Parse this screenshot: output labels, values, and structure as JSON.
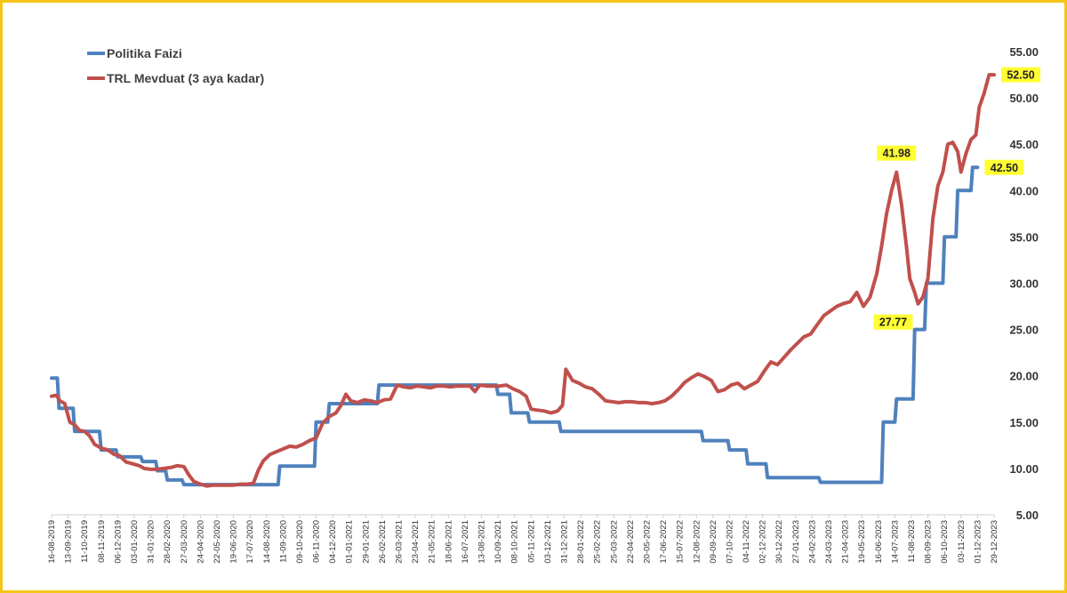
{
  "chart_data": {
    "type": "line",
    "title": "",
    "xlabel": "",
    "ylabel": "",
    "ylim": [
      5,
      55
    ],
    "y_ticks": [
      "5.00",
      "10.00",
      "15.00",
      "20.00",
      "25.00",
      "30.00",
      "35.00",
      "40.00",
      "45.00",
      "50.00",
      "55.00"
    ],
    "y_axis_side": "right",
    "grid": false,
    "legend_position": "top-left",
    "x_categories": [
      "16-08-2019",
      "13-09-2019",
      "11-10-2019",
      "08-11-2019",
      "06-12-2019",
      "03-01-2020",
      "31-01-2020",
      "28-02-2020",
      "27-03-2020",
      "24-04-2020",
      "22-05-2020",
      "19-06-2020",
      "17-07-2020",
      "14-08-2020",
      "11-09-2020",
      "09-10-2020",
      "06-11-2020",
      "04-12-2020",
      "01-01-2021",
      "29-01-2021",
      "26-02-2021",
      "26-03-2021",
      "23-04-2021",
      "21-05-2021",
      "18-06-2021",
      "16-07-2021",
      "13-08-2021",
      "10-09-2021",
      "08-10-2021",
      "05-11-2021",
      "03-12-2021",
      "31-12-2021",
      "28-01-2022",
      "25-02-2022",
      "25-03-2022",
      "22-04-2022",
      "20-05-2022",
      "17-06-2022",
      "15-07-2022",
      "12-08-2022",
      "09-09-2022",
      "07-10-2022",
      "04-11-2022",
      "02-12-2022",
      "30-12-2022",
      "27-01-2023",
      "24-02-2023",
      "24-03-2023",
      "21-04-2023",
      "19-05-2023",
      "16-06-2023",
      "14-07-2023",
      "11-08-2023",
      "08-09-2023",
      "06-10-2023",
      "03-11-2023",
      "01-12-2023",
      "29-12-2023"
    ],
    "series": [
      {
        "name": "Politika Faizi",
        "color": "#4f81bd",
        "points": [
          [
            0,
            19.75
          ],
          [
            0.35,
            19.75
          ],
          [
            0.45,
            16.5
          ],
          [
            1.3,
            16.5
          ],
          [
            1.4,
            14.0
          ],
          [
            2.9,
            14.0
          ],
          [
            3.0,
            12.0
          ],
          [
            3.9,
            12.0
          ],
          [
            4.0,
            11.25
          ],
          [
            5.4,
            11.25
          ],
          [
            5.5,
            10.75
          ],
          [
            6.3,
            10.75
          ],
          [
            6.4,
            9.75
          ],
          [
            6.9,
            9.75
          ],
          [
            7.0,
            8.75
          ],
          [
            7.9,
            8.75
          ],
          [
            8.0,
            8.25
          ],
          [
            13.7,
            8.25
          ],
          [
            13.8,
            10.25
          ],
          [
            15.9,
            10.25
          ],
          [
            16.0,
            15.0
          ],
          [
            16.7,
            15.0
          ],
          [
            16.8,
            17.0
          ],
          [
            19.7,
            17.0
          ],
          [
            19.8,
            19.0
          ],
          [
            26.9,
            19.0
          ],
          [
            27.0,
            18.0
          ],
          [
            27.7,
            18.0
          ],
          [
            27.8,
            16.0
          ],
          [
            28.8,
            16.0
          ],
          [
            28.9,
            15.0
          ],
          [
            30.7,
            15.0
          ],
          [
            30.8,
            14.0
          ],
          [
            39.3,
            14.0
          ],
          [
            39.4,
            13.0
          ],
          [
            40.9,
            13.0
          ],
          [
            41.0,
            12.0
          ],
          [
            42.0,
            12.0
          ],
          [
            42.1,
            10.5
          ],
          [
            43.2,
            10.5
          ],
          [
            43.3,
            9.0
          ],
          [
            46.4,
            9.0
          ],
          [
            46.5,
            8.5
          ],
          [
            50.2,
            8.5
          ],
          [
            50.3,
            15.0
          ],
          [
            51.0,
            15.0
          ],
          [
            51.1,
            17.5
          ],
          [
            52.1,
            17.5
          ],
          [
            52.2,
            25.0
          ],
          [
            52.8,
            25.0
          ],
          [
            52.9,
            30.0
          ],
          [
            53.9,
            30.0
          ],
          [
            54.0,
            35.0
          ],
          [
            54.7,
            35.0
          ],
          [
            54.8,
            40.0
          ],
          [
            55.6,
            40.0
          ],
          [
            55.7,
            42.5
          ],
          [
            56.0,
            42.5
          ]
        ],
        "end_label": "42.50"
      },
      {
        "name": "TRL Mevduat (3 aya kadar)",
        "color": "#c0504d",
        "points": [
          [
            0,
            17.8
          ],
          [
            0.3,
            17.9
          ],
          [
            0.5,
            17.3
          ],
          [
            0.8,
            17.0
          ],
          [
            1.1,
            15.0
          ],
          [
            1.4,
            14.7
          ],
          [
            1.7,
            14.1
          ],
          [
            2.0,
            14.0
          ],
          [
            2.3,
            13.5
          ],
          [
            2.6,
            12.6
          ],
          [
            3.0,
            12.2
          ],
          [
            3.4,
            12.0
          ],
          [
            3.8,
            11.5
          ],
          [
            4.1,
            11.4
          ],
          [
            4.5,
            10.7
          ],
          [
            4.9,
            10.5
          ],
          [
            5.3,
            10.3
          ],
          [
            5.6,
            10.0
          ],
          [
            6.0,
            9.9
          ],
          [
            6.4,
            9.9
          ],
          [
            6.8,
            10.0
          ],
          [
            7.2,
            10.1
          ],
          [
            7.6,
            10.3
          ],
          [
            8.0,
            10.2
          ],
          [
            8.3,
            9.3
          ],
          [
            8.6,
            8.6
          ],
          [
            9.0,
            8.3
          ],
          [
            9.4,
            8.1
          ],
          [
            9.8,
            8.2
          ],
          [
            10.2,
            8.2
          ],
          [
            10.6,
            8.2
          ],
          [
            11.0,
            8.2
          ],
          [
            11.4,
            8.3
          ],
          [
            11.8,
            8.3
          ],
          [
            12.2,
            8.4
          ],
          [
            12.5,
            9.8
          ],
          [
            12.8,
            10.8
          ],
          [
            13.2,
            11.5
          ],
          [
            13.6,
            11.8
          ],
          [
            14.0,
            12.1
          ],
          [
            14.4,
            12.4
          ],
          [
            14.8,
            12.3
          ],
          [
            15.2,
            12.6
          ],
          [
            15.6,
            13.0
          ],
          [
            16.0,
            13.3
          ],
          [
            16.4,
            14.9
          ],
          [
            16.8,
            15.6
          ],
          [
            17.2,
            16.0
          ],
          [
            17.5,
            16.8
          ],
          [
            17.8,
            18.0
          ],
          [
            18.1,
            17.3
          ],
          [
            18.5,
            17.1
          ],
          [
            18.9,
            17.4
          ],
          [
            19.3,
            17.3
          ],
          [
            19.7,
            17.1
          ],
          [
            20.1,
            17.4
          ],
          [
            20.5,
            17.5
          ],
          [
            20.9,
            19.0
          ],
          [
            21.3,
            18.8
          ],
          [
            21.7,
            18.7
          ],
          [
            22.1,
            18.9
          ],
          [
            22.5,
            18.8
          ],
          [
            22.9,
            18.7
          ],
          [
            23.3,
            18.9
          ],
          [
            23.7,
            18.9
          ],
          [
            24.1,
            18.8
          ],
          [
            24.5,
            18.9
          ],
          [
            24.9,
            18.9
          ],
          [
            25.3,
            18.9
          ],
          [
            25.6,
            18.3
          ],
          [
            25.9,
            19.0
          ],
          [
            26.3,
            18.9
          ],
          [
            26.7,
            18.9
          ],
          [
            27.1,
            18.9
          ],
          [
            27.5,
            19.0
          ],
          [
            27.9,
            18.6
          ],
          [
            28.3,
            18.3
          ],
          [
            28.7,
            17.8
          ],
          [
            29.0,
            16.4
          ],
          [
            29.4,
            16.3
          ],
          [
            29.8,
            16.2
          ],
          [
            30.2,
            16.0
          ],
          [
            30.6,
            16.2
          ],
          [
            30.9,
            16.8
          ],
          [
            31.1,
            20.7
          ],
          [
            31.5,
            19.5
          ],
          [
            31.9,
            19.2
          ],
          [
            32.3,
            18.8
          ],
          [
            32.7,
            18.6
          ],
          [
            33.1,
            18.0
          ],
          [
            33.5,
            17.3
          ],
          [
            33.9,
            17.2
          ],
          [
            34.3,
            17.1
          ],
          [
            34.7,
            17.2
          ],
          [
            35.1,
            17.2
          ],
          [
            35.5,
            17.1
          ],
          [
            35.9,
            17.1
          ],
          [
            36.3,
            17.0
          ],
          [
            36.7,
            17.1
          ],
          [
            37.1,
            17.3
          ],
          [
            37.5,
            17.8
          ],
          [
            37.9,
            18.5
          ],
          [
            38.3,
            19.3
          ],
          [
            38.7,
            19.8
          ],
          [
            39.1,
            20.2
          ],
          [
            39.5,
            19.9
          ],
          [
            39.9,
            19.5
          ],
          [
            40.3,
            18.3
          ],
          [
            40.7,
            18.5
          ],
          [
            41.1,
            19.0
          ],
          [
            41.5,
            19.2
          ],
          [
            41.9,
            18.6
          ],
          [
            42.3,
            19.0
          ],
          [
            42.7,
            19.4
          ],
          [
            43.1,
            20.5
          ],
          [
            43.5,
            21.5
          ],
          [
            43.9,
            21.2
          ],
          [
            44.3,
            22.0
          ],
          [
            44.7,
            22.8
          ],
          [
            45.1,
            23.5
          ],
          [
            45.5,
            24.2
          ],
          [
            45.9,
            24.5
          ],
          [
            46.3,
            25.5
          ],
          [
            46.7,
            26.5
          ],
          [
            47.1,
            27.0
          ],
          [
            47.5,
            27.5
          ],
          [
            47.9,
            27.8
          ],
          [
            48.3,
            28.0
          ],
          [
            48.7,
            29.0
          ],
          [
            49.1,
            27.5
          ],
          [
            49.5,
            28.5
          ],
          [
            49.9,
            31.0
          ],
          [
            50.2,
            34.0
          ],
          [
            50.5,
            37.5
          ],
          [
            50.8,
            40.0
          ],
          [
            51.1,
            41.98
          ],
          [
            51.4,
            38.5
          ],
          [
            51.7,
            34.0
          ],
          [
            51.9,
            30.5
          ],
          [
            52.2,
            29.0
          ],
          [
            52.4,
            27.77
          ],
          [
            52.7,
            28.5
          ],
          [
            53.0,
            30.5
          ],
          [
            53.3,
            37.0
          ],
          [
            53.6,
            40.5
          ],
          [
            53.9,
            42.0
          ],
          [
            54.2,
            45.0
          ],
          [
            54.5,
            45.2
          ],
          [
            54.8,
            44.2
          ],
          [
            55.0,
            42.0
          ],
          [
            55.3,
            44.0
          ],
          [
            55.6,
            45.5
          ],
          [
            55.9,
            46.0
          ],
          [
            56.1,
            49.0
          ],
          [
            56.4,
            50.5
          ],
          [
            56.7,
            52.5
          ],
          [
            57.0,
            52.5
          ]
        ],
        "end_label": "52.50"
      }
    ],
    "annotations": [
      {
        "series": 1,
        "x": 51.1,
        "y": 41.98,
        "label": "41.98",
        "placement": "above"
      },
      {
        "series": 1,
        "x": 52.4,
        "y": 27.77,
        "label": "27.77",
        "placement": "left"
      },
      {
        "series": 1,
        "x": 57.0,
        "y": 52.5,
        "label": "52.50",
        "placement": "right"
      },
      {
        "series": 0,
        "x": 56.0,
        "y": 42.5,
        "label": "42.50",
        "placement": "right"
      }
    ]
  }
}
